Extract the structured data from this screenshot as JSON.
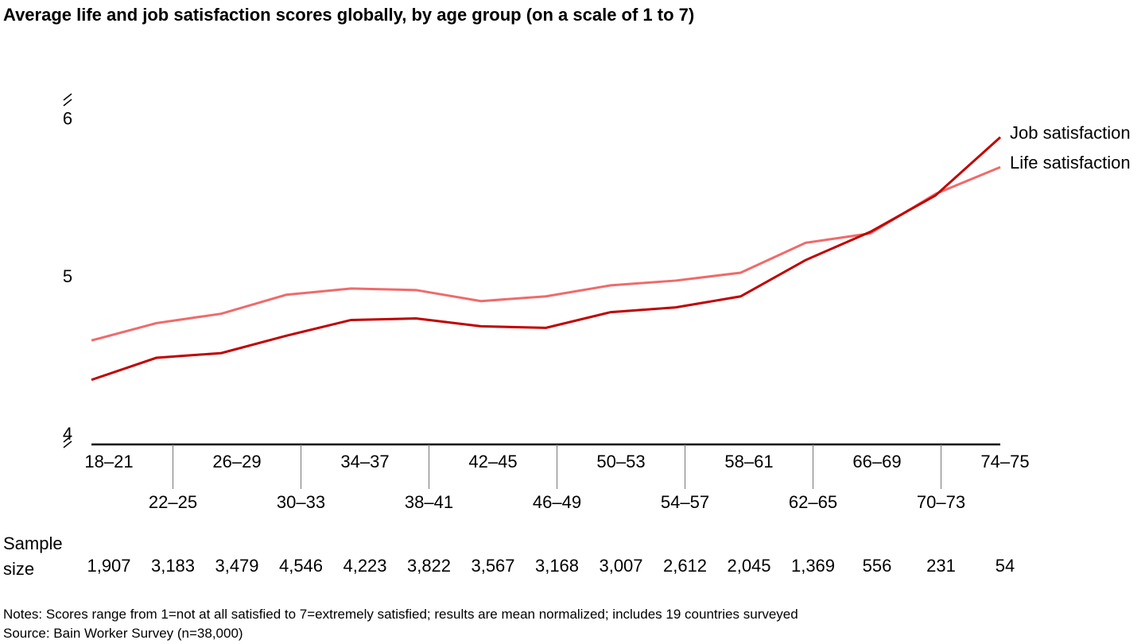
{
  "chart_data": {
    "type": "line",
    "title": "Average life and job satisfaction scores globally, by age group (on a scale of 1 to 7)",
    "categories": [
      "18–21",
      "22–25",
      "26–29",
      "30–33",
      "34–37",
      "38–41",
      "42–45",
      "46–49",
      "50–53",
      "54–57",
      "58–61",
      "62–65",
      "66–69",
      "70–73",
      "74–75"
    ],
    "series": [
      {
        "name": "Job satisfaction",
        "color": "#c00000",
        "values": [
          4.37,
          4.51,
          4.54,
          4.65,
          4.75,
          4.76,
          4.71,
          4.7,
          4.8,
          4.83,
          4.9,
          5.13,
          5.31,
          5.54,
          5.91
        ]
      },
      {
        "name": "Life satisfaction",
        "color": "#f06a6a",
        "values": [
          4.62,
          4.73,
          4.79,
          4.91,
          4.95,
          4.94,
          4.87,
          4.9,
          4.97,
          5.0,
          5.05,
          5.24,
          5.3,
          5.55,
          5.72
        ]
      }
    ],
    "ylim": [
      3.96,
      6.1
    ],
    "yticks": [
      4,
      5,
      6
    ],
    "sample_label": "Sample size",
    "sample_sizes": [
      {
        "value": 1907,
        "label": "1,907"
      },
      {
        "value": 3183,
        "label": "3,183"
      },
      {
        "value": 3479,
        "label": "3,479"
      },
      {
        "value": 4546,
        "label": "4,546"
      },
      {
        "value": 4223,
        "label": "4,223"
      },
      {
        "value": 3822,
        "label": "3,822"
      },
      {
        "value": 3567,
        "label": "3,567"
      },
      {
        "value": 3168,
        "label": "3,168"
      },
      {
        "value": 3007,
        "label": "3,007"
      },
      {
        "value": 2612,
        "label": "2,612"
      },
      {
        "value": 2045,
        "label": "2,045"
      },
      {
        "value": 1369,
        "label": "1,369"
      },
      556,
      231,
      54
    ],
    "notes": "Notes: Scores range from 1=not at all satisfied to 7=extremely satisfied; results are mean normalized; includes 19 countries surveyed",
    "source": "Source: Bain Worker Survey (n=38,000)"
  }
}
